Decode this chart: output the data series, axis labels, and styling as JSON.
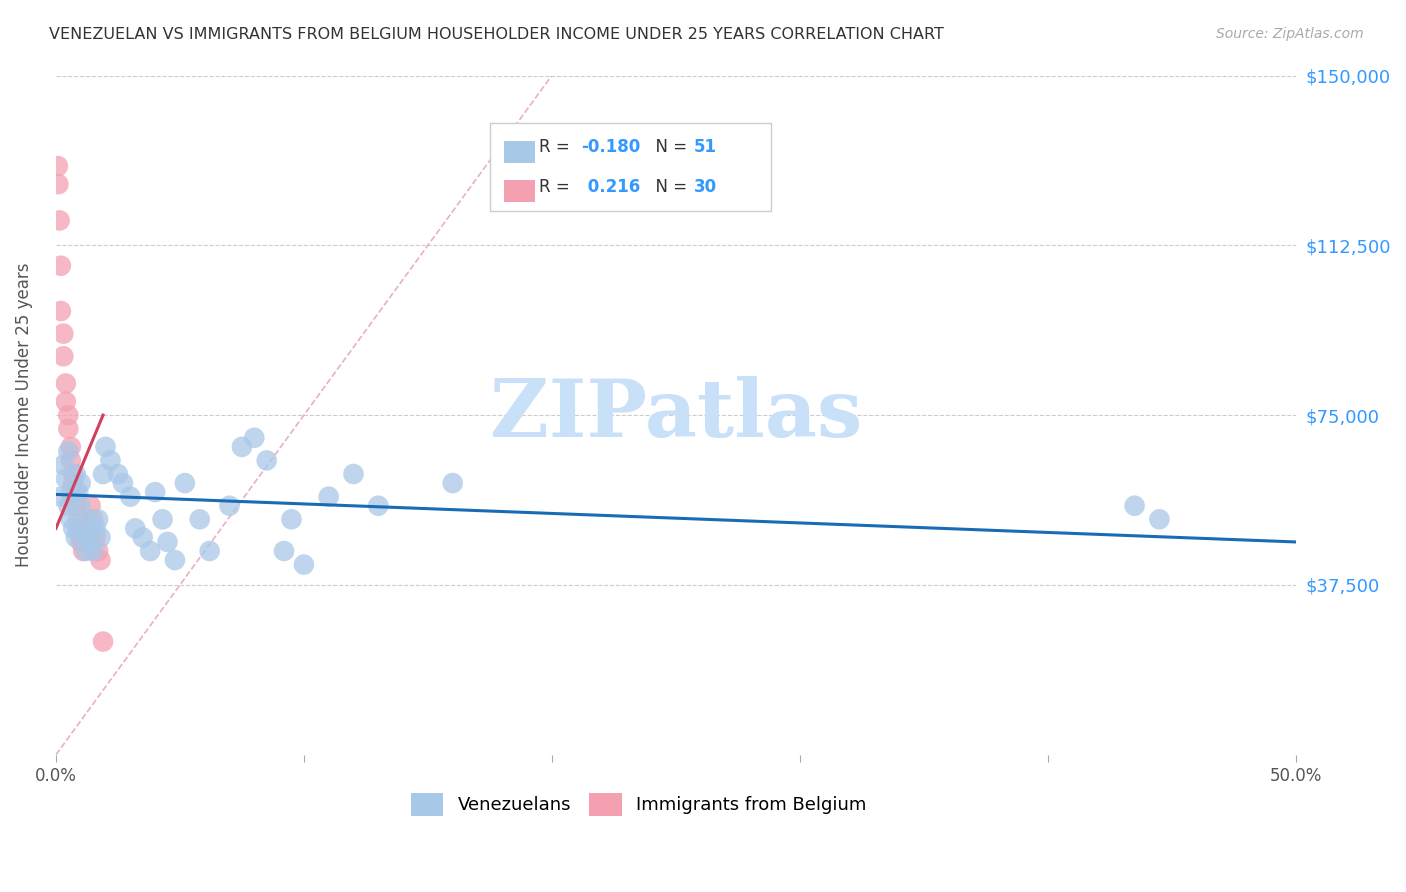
{
  "title": "VENEZUELAN VS IMMIGRANTS FROM BELGIUM HOUSEHOLDER INCOME UNDER 25 YEARS CORRELATION CHART",
  "source": "Source: ZipAtlas.com",
  "ylabel": "Householder Income Under 25 years",
  "xlim": [
    0,
    0.5
  ],
  "ylim": [
    0,
    150000
  ],
  "blue_color": "#a8c8e8",
  "pink_color": "#f4a0b0",
  "blue_line_color": "#1a6bb5",
  "pink_line_color": "#d04060",
  "ref_line_color": "#cccccc",
  "watermark_text": "ZIPatlas",
  "watermark_color": "#c8e0f8",
  "background_color": "#ffffff",
  "grid_color": "#cccccc",
  "tick_color": "#3399ff",
  "title_color": "#333333",
  "source_color": "#aaaaaa",
  "venezuelan_x": [
    0.002,
    0.003,
    0.004,
    0.005,
    0.005,
    0.006,
    0.006,
    0.007,
    0.008,
    0.008,
    0.009,
    0.01,
    0.01,
    0.011,
    0.012,
    0.012,
    0.013,
    0.014,
    0.015,
    0.016,
    0.017,
    0.018,
    0.019,
    0.02,
    0.022,
    0.025,
    0.027,
    0.03,
    0.032,
    0.035,
    0.038,
    0.04,
    0.043,
    0.045,
    0.048,
    0.052,
    0.058,
    0.062,
    0.07,
    0.075,
    0.08,
    0.085,
    0.092,
    0.095,
    0.1,
    0.11,
    0.12,
    0.13,
    0.16,
    0.435,
    0.445
  ],
  "venezuelan_y": [
    57000,
    64000,
    61000,
    67000,
    55000,
    58000,
    52000,
    50000,
    48000,
    62000,
    58000,
    55000,
    60000,
    50000,
    48000,
    45000,
    52000,
    47000,
    45000,
    50000,
    52000,
    48000,
    62000,
    68000,
    65000,
    62000,
    60000,
    57000,
    50000,
    48000,
    45000,
    58000,
    52000,
    47000,
    43000,
    60000,
    52000,
    45000,
    55000,
    68000,
    70000,
    65000,
    45000,
    52000,
    42000,
    57000,
    62000,
    55000,
    60000,
    55000,
    52000
  ],
  "belgium_x": [
    0.0008,
    0.001,
    0.0015,
    0.002,
    0.002,
    0.003,
    0.003,
    0.004,
    0.004,
    0.005,
    0.005,
    0.006,
    0.006,
    0.007,
    0.007,
    0.008,
    0.008,
    0.009,
    0.009,
    0.01,
    0.01,
    0.011,
    0.012,
    0.013,
    0.014,
    0.015,
    0.016,
    0.017,
    0.018,
    0.019
  ],
  "belgium_y": [
    130000,
    126000,
    118000,
    108000,
    98000,
    93000,
    88000,
    82000,
    78000,
    75000,
    72000,
    68000,
    65000,
    62000,
    60000,
    58000,
    55000,
    52000,
    50000,
    48000,
    47000,
    45000,
    50000,
    48000,
    55000,
    52000,
    48000,
    45000,
    43000,
    25000
  ],
  "blue_line_x0": 0.0,
  "blue_line_y0": 57500,
  "blue_line_x1": 0.5,
  "blue_line_y1": 47000,
  "pink_line_x0": 0.0,
  "pink_line_y0": 50000,
  "pink_line_x1": 0.019,
  "pink_line_y1": 75000,
  "ref_line_x0": 0.0,
  "ref_line_y0": 0,
  "ref_line_x1": 0.2,
  "ref_line_y1": 150000
}
